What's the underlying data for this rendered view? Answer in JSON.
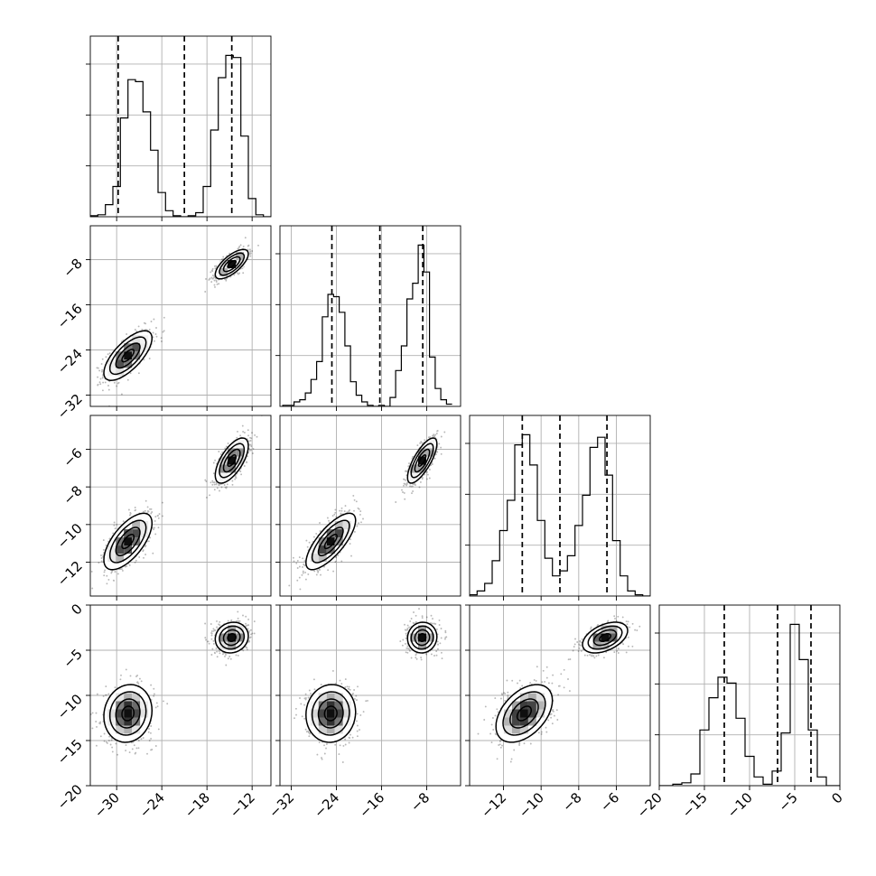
{
  "chart_data": {
    "type": "corner",
    "n_params": 4,
    "params": [
      {
        "ticks": [
          -30,
          -24,
          -18,
          -12
        ],
        "range": [
          -33.5,
          -9.5
        ]
      },
      {
        "ticks": [
          -32,
          -24,
          -16,
          -8
        ],
        "range": [
          -34,
          -2
        ]
      },
      {
        "ticks": [
          -12,
          -10,
          -8,
          -6
        ],
        "range": [
          -13.8,
          -4.2
        ]
      },
      {
        "ticks": [
          -20,
          -15,
          -10,
          -5,
          0
        ],
        "range": [
          -20,
          0
        ]
      }
    ],
    "diag_hist": [
      {
        "bins": [
          -33,
          -32,
          -31,
          -30,
          -29,
          -28,
          -27,
          -26,
          -25,
          -24,
          -23,
          -22,
          -21,
          -20,
          -19,
          -18,
          -17,
          -16,
          -15,
          -14,
          -13,
          -12,
          -11,
          -10
        ],
        "counts": [
          0.5,
          1,
          6,
          15,
          49,
          68,
          67,
          52,
          33,
          12,
          3,
          0.5,
          0,
          0.5,
          2,
          15,
          43,
          69,
          80,
          79,
          40,
          9,
          1,
          0
        ],
        "quantiles": [
          -29.8,
          -21.0,
          -14.7
        ]
      },
      {
        "bins": [
          -33,
          -32,
          -31,
          -30,
          -29,
          -28,
          -27,
          -26,
          -25,
          -24,
          -23,
          -22,
          -21,
          -20,
          -19,
          -18,
          -17,
          -16,
          -15,
          -14,
          -13,
          -12,
          -11,
          -10,
          -9,
          -8,
          -7,
          -6,
          -5,
          -4
        ],
        "counts": [
          0.5,
          0.5,
          2,
          3,
          6,
          12,
          20,
          40,
          50,
          49,
          42,
          27,
          11,
          5,
          2,
          0.5,
          0,
          0.5,
          0,
          4,
          16,
          27,
          48,
          55,
          72,
          60,
          22,
          8,
          3,
          1
        ],
        "quantiles": [
          -24.8,
          -16.3,
          -8.7
        ]
      },
      {
        "bins": [
          -13.6,
          -13.2,
          -12.8,
          -12.4,
          -12.0,
          -11.6,
          -11.2,
          -10.8,
          -10.4,
          -10.0,
          -9.6,
          -9.2,
          -8.8,
          -8.4,
          -8.0,
          -7.6,
          -7.2,
          -6.8,
          -6.4,
          -6.0,
          -5.6,
          -5.2,
          -4.8,
          -4.4
        ],
        "counts": [
          0.5,
          2,
          5,
          14,
          26,
          38,
          60,
          64,
          52,
          30,
          15,
          8,
          10,
          16,
          28,
          40,
          59,
          63,
          48,
          22,
          8,
          2,
          0.5,
          0
        ],
        "quantiles": [
          -11.0,
          -9.0,
          -6.5
        ]
      },
      {
        "bins": [
          -20,
          -19,
          -18,
          -17,
          -16,
          -15,
          -14,
          -13,
          -12,
          -11,
          -10,
          -9,
          -8,
          -7,
          -6,
          -5,
          -4,
          -3,
          -2,
          -1,
          0
        ],
        "counts": [
          0,
          0,
          0.5,
          1,
          4,
          19,
          30,
          37,
          35,
          23,
          10,
          3,
          0.5,
          5,
          18,
          55,
          43,
          19,
          3,
          0,
          0
        ],
        "quantiles": [
          -12.8,
          -6.9,
          -3.2
        ]
      }
    ],
    "clusters": [
      {
        "mean": [
          -28.5,
          -25.0,
          -10.9,
          -12.0
        ],
        "sd": [
          1.6,
          2.2,
          0.75,
          1.6
        ],
        "weight": 0.5
      },
      {
        "mean": [
          -14.7,
          -8.8,
          -6.6,
          -3.6
        ],
        "sd": [
          1.1,
          1.3,
          0.6,
          0.85
        ],
        "weight": 0.5
      }
    ],
    "correlations": [
      {
        "i": 1,
        "j": 0,
        "rho": 0.7
      },
      {
        "i": 2,
        "j": 0,
        "rho": 0.65
      },
      {
        "i": 2,
        "j": 1,
        "rho": 0.75
      },
      {
        "i": 3,
        "j": 0,
        "rho": 0.1
      },
      {
        "i": 3,
        "j": 1,
        "rho": 0.05
      },
      {
        "i": 3,
        "j": 2,
        "rho": 0.45
      }
    ],
    "contour_levels_sigma": [
      0.5,
      1.0,
      1.5,
      2.0
    ],
    "quantile_levels": [
      0.16,
      0.5,
      0.84
    ],
    "grid": true,
    "colors": {
      "line": "#000000",
      "grid": "#b0b0b0",
      "background": "#ffffff",
      "points": "#000000"
    }
  }
}
